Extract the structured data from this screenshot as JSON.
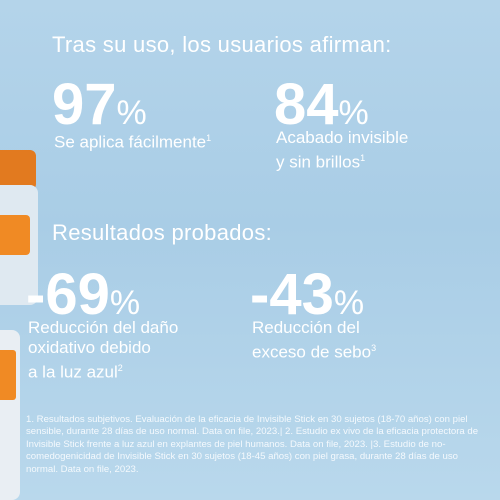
{
  "header": {
    "title": "Tras su uso, los usuarios afirman:"
  },
  "stats_top": [
    {
      "value": "97",
      "unit": "%",
      "label_lines": [
        "Se aplica fácilmente"
      ],
      "note": "1"
    },
    {
      "value": "84",
      "unit": "%",
      "label_lines": [
        "Acabado invisible",
        "y sin brillos"
      ],
      "note": "1"
    }
  ],
  "section": {
    "title": "Resultados probados:"
  },
  "stats_bottom": [
    {
      "value": "-69",
      "unit": "%",
      "label_lines": [
        "Reducción del daño",
        "oxidativo debido",
        "a la luz azul"
      ],
      "note": "2"
    },
    {
      "value": "-43",
      "unit": "%",
      "label_lines": [
        "Reducción del",
        "exceso de sebo"
      ],
      "note": "3"
    }
  ],
  "footnote": "1. Resultados subjetivos. Evaluación de la eficacia de Invisible Stick en 30 sujetos (18-70 años) con piel sensible, durante 28 días de uso normal. Data on file, 2023.| 2. Estudio ex vivo de la eficacia protectora de Invisible Stick frente a luz azul en explantes de piel humanos. Data on file, 2023. |3. Estudio de no-comedogenicidad de Invisible Stick en 30 sujetos (18-45 años) con piel grasa, durante 28 días de uso normal. Data on file, 2023."
}
